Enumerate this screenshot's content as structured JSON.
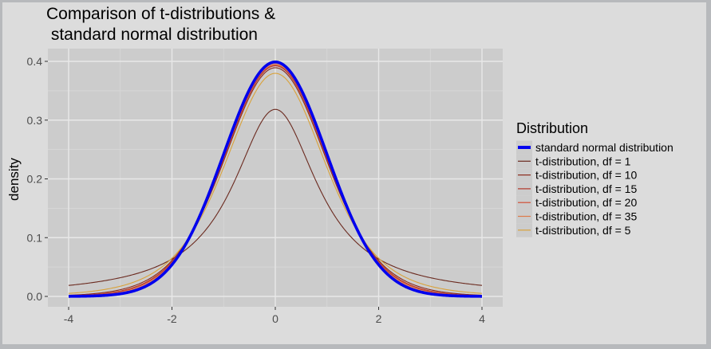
{
  "chart_data": {
    "type": "line",
    "title_lines": [
      "Comparison of t-distributions &",
      " standard normal distribution"
    ],
    "xlabel": "",
    "ylabel": "density",
    "xlim": [
      -4,
      4
    ],
    "ylim": [
      0,
      0.4
    ],
    "x_ticks": [
      -4,
      -2,
      0,
      2,
      4
    ],
    "x_tick_labels": [
      "-4",
      "-2",
      "0",
      "2",
      "4"
    ],
    "y_ticks": [
      0,
      0.1,
      0.2,
      0.3,
      0.4
    ],
    "y_tick_labels": [
      "0.0",
      "0.1",
      "0.2",
      "0.3",
      "0.4"
    ],
    "grid": true,
    "legend": {
      "title": "Distribution",
      "position": "right"
    },
    "series": [
      {
        "name": "standard normal distribution",
        "dist": "normal",
        "color": "#0000ee",
        "width": "thick",
        "values_at_x": {
          "-4": 0.0001,
          "-2": 0.054,
          "0": 0.399,
          "2": 0.054,
          "4": 0.0001
        }
      },
      {
        "name": "t-distribution, df = 1",
        "dist": "t",
        "df": 1,
        "color": "#6b2a1f",
        "width": "thin",
        "values_at_x": {
          "-4": 0.0187,
          "-2": 0.0637,
          "0": 0.318,
          "2": 0.0637,
          "4": 0.0187
        }
      },
      {
        "name": "t-distribution, df = 10",
        "dist": "t",
        "df": 10,
        "color": "#8c2a1c",
        "width": "thin",
        "values_at_x": {
          "-4": 0.002,
          "-2": 0.061,
          "0": 0.389,
          "2": 0.061,
          "4": 0.002
        }
      },
      {
        "name": "t-distribution, df = 15",
        "dist": "t",
        "df": 15,
        "color": "#b3392a",
        "width": "thin",
        "values_at_x": {
          "-4": 0.0013,
          "-2": 0.059,
          "0": 0.392,
          "2": 0.059,
          "4": 0.0013
        }
      },
      {
        "name": "t-distribution, df = 20",
        "dist": "t",
        "df": 20,
        "color": "#d24f36",
        "width": "thin",
        "values_at_x": {
          "-4": 0.0009,
          "-2": 0.058,
          "0": 0.394,
          "2": 0.058,
          "4": 0.0009
        }
      },
      {
        "name": "t-distribution, df = 35",
        "dist": "t",
        "df": 35,
        "color": "#de7a4a",
        "width": "thin",
        "values_at_x": {
          "-4": 0.0005,
          "-2": 0.056,
          "0": 0.396,
          "2": 0.056,
          "4": 0.0005
        }
      },
      {
        "name": "t-distribution, df = 5",
        "dist": "t",
        "df": 5,
        "color": "#d9a23a",
        "width": "thin",
        "values_at_x": {
          "-4": 0.0051,
          "-2": 0.065,
          "0": 0.38,
          "2": 0.065,
          "4": 0.0051
        }
      }
    ]
  }
}
